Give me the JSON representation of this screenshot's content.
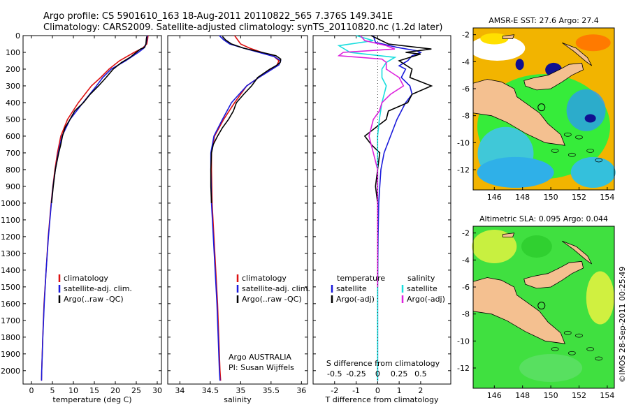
{
  "header": {
    "line1": "Argo profile: CS 5901610_163 18-Aug-2011 20110822_565 7.376S 149.341E",
    "line2": "Climatology: CARS2009. Satellite-adjusted climatology: synTS_20110820.nc (1.2d later)"
  },
  "footer_stamp": "©IMOS 28-Sep-2011 00:25:49",
  "colors": {
    "climatology": "#dd1111",
    "satellite": "#1a1adb",
    "argo": "#000000",
    "sat_salinity": "#18dede",
    "argo_salinity_adj": "#dd22dd",
    "land": "#f4c090",
    "ocean_fill": "#33ee33"
  },
  "chart_data": [
    {
      "id": "temperature",
      "type": "line",
      "xlabel": "temperature (deg C)",
      "ylabel": "",
      "xlim": [
        -2,
        31
      ],
      "ylim": [
        2080,
        0
      ],
      "x_ticks": [
        0,
        5,
        10,
        15,
        20,
        25,
        30
      ],
      "y_ticks": [
        0,
        100,
        200,
        300,
        400,
        500,
        600,
        700,
        800,
        900,
        1000,
        1100,
        1200,
        1300,
        1400,
        1500,
        1600,
        1700,
        1800,
        1900,
        2000
      ],
      "legend": {
        "placement": "lower-center",
        "entries": [
          "climatology",
          "satellite-adj. clim.",
          "Argo(..raw -QC)"
        ]
      },
      "series": [
        {
          "name": "climatology",
          "color": "#dd1111",
          "depth": [
            0,
            25,
            50,
            75,
            100,
            150,
            200,
            250,
            300,
            400,
            500,
            600,
            700,
            800,
            900,
            1000,
            1200,
            1400,
            1600,
            1800,
            2000,
            2060
          ],
          "values": [
            27.8,
            27.7,
            27.5,
            26.5,
            24.5,
            21,
            18.5,
            16.5,
            14.3,
            11.2,
            8.6,
            7.0,
            6.2,
            5.6,
            5.1,
            4.7,
            4.0,
            3.5,
            3.0,
            2.7,
            2.45,
            2.4
          ]
        },
        {
          "name": "satellite-adj. clim.",
          "color": "#1a1adb",
          "depth": [
            0,
            25,
            50,
            75,
            100,
            150,
            200,
            250,
            300,
            400,
            500,
            600,
            700,
            800,
            900,
            1000,
            1200,
            1400,
            1600,
            1800,
            2000,
            2060
          ],
          "values": [
            27.6,
            27.5,
            27.3,
            26.8,
            25.5,
            22.5,
            19,
            17,
            15.5,
            12.3,
            9.2,
            7.3,
            6.4,
            5.7,
            5.15,
            4.75,
            4.05,
            3.5,
            3.05,
            2.72,
            2.45,
            2.4
          ]
        },
        {
          "name": "Argo(..raw -QC)",
          "color": "#000000",
          "depth": [
            5,
            20,
            50,
            70,
            80,
            100,
            130,
            160,
            200,
            250,
            300,
            350,
            400,
            450,
            500,
            550,
            600,
            650,
            700,
            800,
            900,
            1000
          ],
          "values": [
            27.5,
            27.4,
            27.3,
            27,
            26,
            25,
            23.5,
            21.5,
            19.5,
            17.8,
            16,
            14,
            12.4,
            10.3,
            9.2,
            8.0,
            7.4,
            7.0,
            6.5,
            5.7,
            5.2,
            4.8
          ]
        }
      ]
    },
    {
      "id": "salinity",
      "type": "line",
      "xlabel": "salinity",
      "ylabel": "",
      "xlim": [
        33.8,
        36.1
      ],
      "ylim": [
        2080,
        0
      ],
      "x_ticks": [
        34,
        34.5,
        35,
        35.5,
        36
      ],
      "legend": {
        "placement": "lower-right",
        "entries": [
          "climatology",
          "satellite-adj. clim.",
          "Argo(..raw -QC)"
        ]
      },
      "annotation": [
        "Argo AUSTRALIA",
        "PI: Susan Wijffels"
      ],
      "series": [
        {
          "name": "climatology",
          "color": "#dd1111",
          "depth": [
            0,
            25,
            50,
            75,
            100,
            125,
            150,
            175,
            200,
            250,
            300,
            400,
            500,
            600,
            700,
            800,
            1000,
            1200,
            1400,
            1600,
            1800,
            2000,
            2060
          ],
          "values": [
            34.9,
            34.95,
            35.0,
            35.15,
            35.35,
            35.55,
            35.63,
            35.6,
            35.5,
            35.3,
            35.1,
            34.9,
            34.72,
            34.57,
            34.52,
            34.52,
            34.53,
            34.56,
            34.59,
            34.62,
            34.64,
            34.66,
            34.67
          ]
        },
        {
          "name": "satellite-adj. clim.",
          "color": "#1a1adb",
          "depth": [
            0,
            25,
            50,
            75,
            100,
            125,
            150,
            175,
            200,
            250,
            300,
            400,
            500,
            600,
            700,
            800,
            1000,
            1200,
            1400,
            1600,
            1800,
            2000,
            2060
          ],
          "values": [
            34.65,
            34.72,
            34.82,
            35.05,
            35.3,
            35.55,
            35.66,
            35.63,
            35.52,
            35.3,
            35.1,
            34.85,
            34.7,
            34.56,
            34.51,
            34.51,
            34.52,
            34.55,
            34.58,
            34.61,
            34.63,
            34.65,
            34.66
          ]
        },
        {
          "name": "Argo(..raw -QC)",
          "color": "#000000",
          "depth": [
            5,
            25,
            50,
            75,
            100,
            120,
            140,
            160,
            180,
            200,
            250,
            300,
            350,
            400,
            450,
            500,
            550,
            600,
            650,
            700,
            800,
            900,
            1000
          ],
          "values": [
            34.7,
            34.75,
            34.85,
            35.05,
            35.35,
            35.58,
            35.66,
            35.65,
            35.58,
            35.48,
            35.28,
            35.18,
            35.05,
            34.93,
            34.88,
            34.8,
            34.7,
            34.62,
            34.55,
            34.52,
            34.51,
            34.51,
            34.52
          ]
        }
      ]
    },
    {
      "id": "differences",
      "type": "line",
      "xlabel": "T difference from climatology",
      "xlabel_top": "S difference from climatology",
      "xlim": [
        -3,
        3.4
      ],
      "ylim": [
        2080,
        0
      ],
      "x_ticks": [
        -2,
        -1,
        0,
        1,
        2
      ],
      "x_ticks_top": [
        "-0.5",
        "-0.25",
        "0",
        "0.25",
        "0.5"
      ],
      "legend": {
        "placement": "lower-center",
        "group_titles": [
          "temperature",
          "salinity"
        ],
        "entries": [
          "satellite",
          "Argo(-adj)",
          "satellite",
          "Argo(-adj)"
        ]
      },
      "series": [
        {
          "name": "temperature satellite",
          "color": "#1a1adb",
          "depth": [
            0,
            40,
            70,
            90,
            100,
            120,
            150,
            180,
            200,
            250,
            300,
            350,
            400,
            450,
            500,
            600,
            700,
            800,
            900,
            1000,
            1200,
            1500,
            1800,
            2060
          ],
          "values": [
            -0.2,
            -0.1,
            0.9,
            1.8,
            2.0,
            1.6,
            1.4,
            1.0,
            1.3,
            1.1,
            1.5,
            1.6,
            1.3,
            1.1,
            0.9,
            0.6,
            0.3,
            0.15,
            0.1,
            0.05,
            0.02,
            0.0,
            0.0,
            0.0
          ]
        },
        {
          "name": "temperature Argo(-adj)",
          "color": "#000000",
          "depth": [
            0,
            50,
            80,
            100,
            110,
            150,
            200,
            250,
            300,
            350,
            400,
            450,
            500,
            550,
            600,
            650,
            700,
            800,
            900,
            1000
          ],
          "values": [
            -0.3,
            0.5,
            2.5,
            1.3,
            2.0,
            1.0,
            1.6,
            1.5,
            2.5,
            1.6,
            1.4,
            0.5,
            0.4,
            -0.1,
            -0.6,
            -0.3,
            0.1,
            0.0,
            -0.1,
            0.0
          ]
        },
        {
          "name": "salinity satellite",
          "color": "#18dede",
          "depth": [
            0,
            30,
            60,
            100,
            130,
            160,
            200,
            250,
            300,
            400,
            500,
            600,
            700,
            800,
            1000,
            1400,
            2060
          ],
          "values": [
            -0.25,
            -0.05,
            -0.45,
            -0.32,
            0.2,
            0.1,
            0.05,
            0.05,
            0.1,
            0.05,
            0.02,
            0.0,
            0.0,
            0.0,
            0.0,
            0.0,
            0.0
          ]
        },
        {
          "name": "salinity Argo(-adj)",
          "color": "#dd22dd",
          "depth": [
            0,
            30,
            60,
            80,
            100,
            120,
            140,
            160,
            200,
            250,
            300,
            350,
            400,
            450,
            500,
            600,
            700,
            800,
            900,
            1000,
            1200,
            1500
          ],
          "values": [
            -0.2,
            -0.15,
            0.1,
            0.2,
            -0.4,
            -0.45,
            0.05,
            0.1,
            0.1,
            0.25,
            0.3,
            0.15,
            0.05,
            0.02,
            -0.05,
            -0.1,
            -0.05,
            0.0,
            0.0,
            0.0,
            0.0,
            0.0
          ]
        }
      ]
    },
    {
      "id": "sst_map",
      "type": "heatmap",
      "title": "AMSR-E SST: 27.6 Argo: 27.4",
      "xlim": [
        144.5,
        154.5
      ],
      "ylim": [
        -13.5,
        -1.5
      ],
      "x_ticks": [
        146,
        148,
        150,
        152,
        154
      ],
      "y_ticks": [
        -2,
        -4,
        -6,
        -8,
        -10,
        -12
      ],
      "marker": {
        "lon": 149.34,
        "lat": -7.38
      }
    },
    {
      "id": "sla_map",
      "type": "heatmap",
      "title": "Altimetric SLA: 0.095 Argo: 0.044",
      "xlim": [
        144.5,
        154.5
      ],
      "ylim": [
        -13.5,
        -1.5
      ],
      "x_ticks": [
        146,
        148,
        150,
        152,
        154
      ],
      "y_ticks": [
        -2,
        -4,
        -6,
        -8,
        -10,
        -12
      ],
      "marker": {
        "lon": 149.34,
        "lat": -7.38
      }
    }
  ]
}
